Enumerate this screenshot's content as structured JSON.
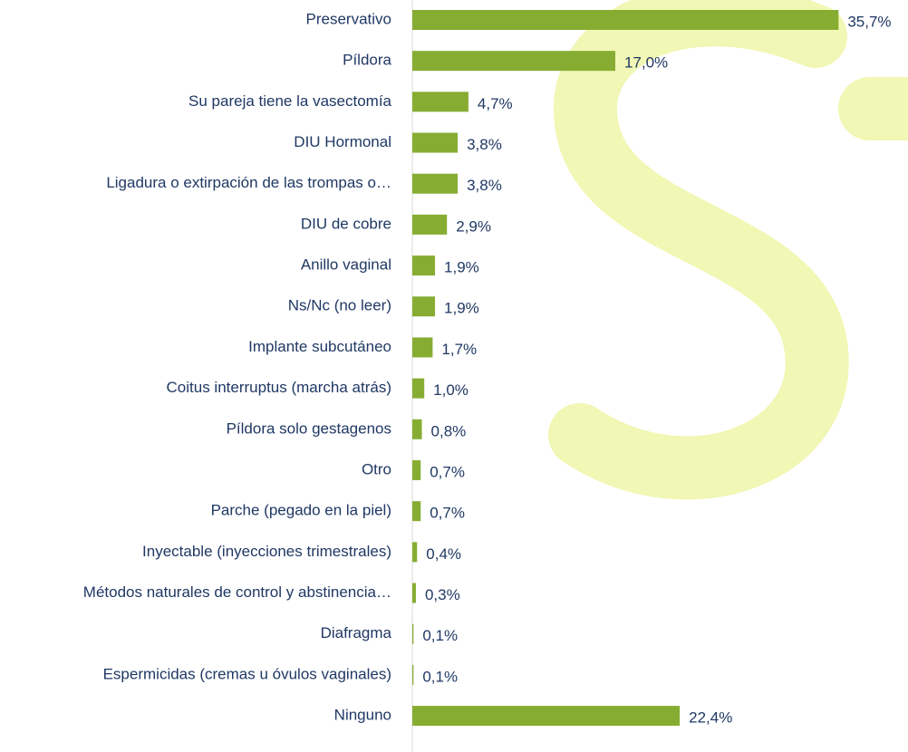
{
  "chart_data": {
    "type": "hbar",
    "categories": [
      "Preservativo",
      "Píldora",
      "Su pareja tiene la vasectomía",
      "DIU Hormonal",
      "Ligadura o extirpación de las trompas  o…",
      "DIU de cobre",
      "Anillo vaginal",
      "Ns/Nc (no leer)",
      "Implante subcutáneo",
      "Coitus interruptus (marcha atrás)",
      "Píldora solo gestagenos",
      "Otro",
      "Parche (pegado en la piel)",
      "Inyectable (inyecciones trimestrales)",
      "Métodos naturales de control y abstinencia…",
      "Diafragma",
      "Espermicidas (cremas u óvulos vaginales)",
      "Ninguno"
    ],
    "values": [
      35.7,
      17.0,
      4.7,
      3.8,
      3.8,
      2.9,
      1.9,
      1.9,
      1.7,
      1.0,
      0.8,
      0.7,
      0.7,
      0.4,
      0.3,
      0.1,
      0.1,
      22.4
    ],
    "value_labels": [
      "35,7%",
      "17,0%",
      "4,7%",
      "3,8%",
      "3,8%",
      "2,9%",
      "1,9%",
      "1,9%",
      "1,7%",
      "1,0%",
      "0,8%",
      "0,7%",
      "0,7%",
      "0,4%",
      "0,3%",
      "0,1%",
      "0,1%",
      "22,4%"
    ],
    "color": "#86ad32",
    "xlim": [
      0,
      40
    ]
  }
}
